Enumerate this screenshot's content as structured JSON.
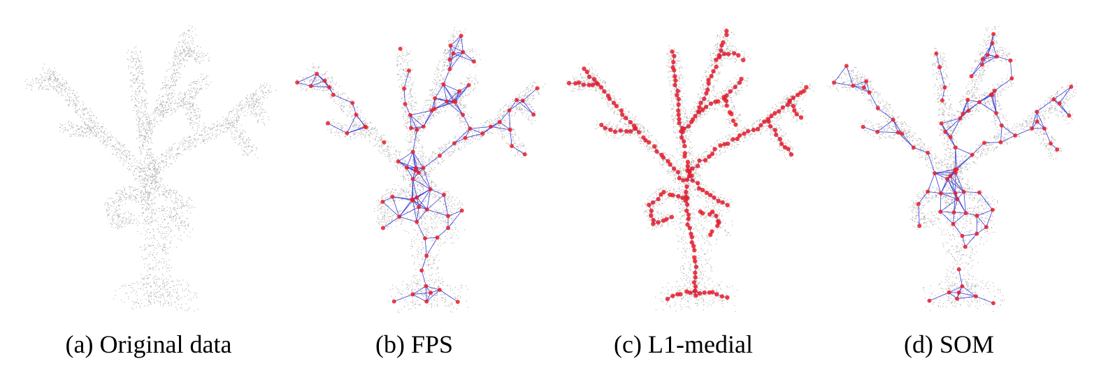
{
  "figure": {
    "panels": [
      {
        "id": "a",
        "caption": "(a) Original data",
        "overlay": "none"
      },
      {
        "id": "b",
        "caption": "(b) FPS",
        "overlay": "sparse-graph"
      },
      {
        "id": "c",
        "caption": "(c) L1-medial",
        "overlay": "dense-skeleton"
      },
      {
        "id": "d",
        "caption": "(d) SOM",
        "overlay": "sparse-graph"
      }
    ],
    "colors": {
      "point_cloud": "#9a9a9a",
      "node": "#e8202a",
      "edge": "#3a3ad8",
      "background": "#ffffff"
    }
  }
}
